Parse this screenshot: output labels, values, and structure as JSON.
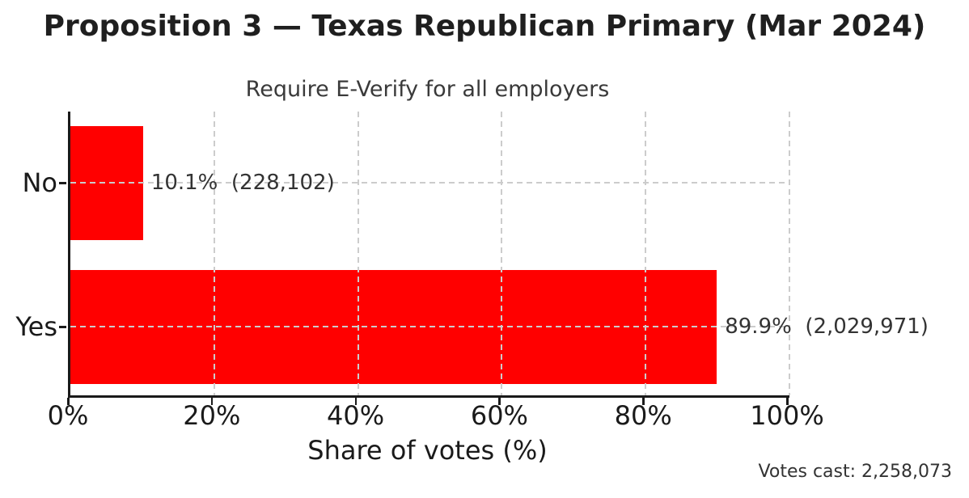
{
  "chart_data": {
    "type": "bar",
    "orientation": "horizontal",
    "title": "Proposition 3 — Texas Republican Primary (Mar 2024)",
    "subtitle": "Require E-Verify for all employers",
    "categories": [
      "No",
      "Yes"
    ],
    "values": [
      10.1,
      89.9
    ],
    "votes": [
      228102,
      2029971
    ],
    "bar_labels": [
      "10.1%  (228,102)",
      "89.9%  (2,029,971)"
    ],
    "xlabel": "Share of votes (%)",
    "xlim": [
      0,
      100
    ],
    "xticks": [
      0,
      20,
      40,
      60,
      80,
      100
    ],
    "xtick_labels": [
      "0%",
      "20%",
      "40%",
      "60%",
      "80%",
      "100%"
    ],
    "footer": "Votes cast: 2,258,073",
    "bar_color": "#ff0000",
    "grid_color": "#cccccc",
    "axis_color": "#1a1a1a",
    "grid": "dashed",
    "legend": "none"
  }
}
